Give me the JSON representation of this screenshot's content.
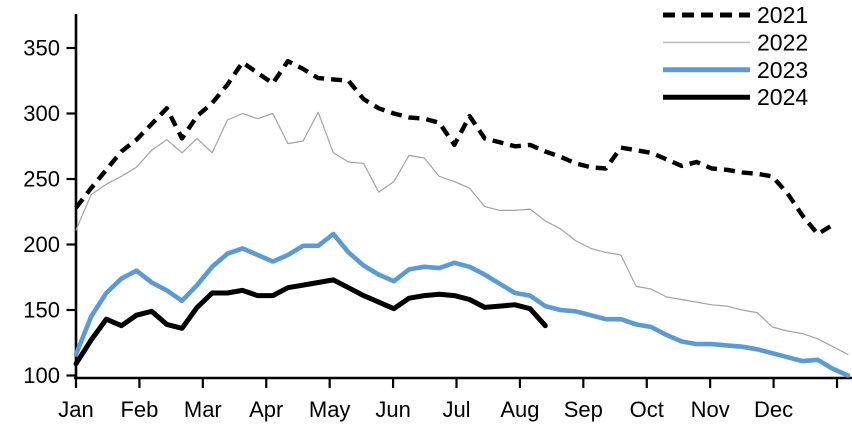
{
  "chart_data": {
    "type": "line",
    "title": "",
    "xlabel": "",
    "ylabel": "",
    "x_unit": "week",
    "categories": [
      "Jan",
      "Feb",
      "Mar",
      "Apr",
      "May",
      "Jun",
      "Jul",
      "Aug",
      "Sep",
      "Oct",
      "Nov",
      "Dec"
    ],
    "ylim": [
      100,
      375
    ],
    "yticks": [
      100,
      150,
      200,
      250,
      300,
      350
    ],
    "grid": false,
    "legend_position": "top-right",
    "axis_color": "#000000",
    "series": [
      {
        "name": "2021",
        "color": "#000000",
        "style": "dashed",
        "width": 4.4,
        "values": [
          228,
          243,
          257,
          271,
          280,
          292,
          304,
          281,
          298,
          308,
          322,
          339,
          331,
          323,
          340,
          334,
          327,
          326,
          325,
          311,
          304,
          300,
          297,
          296,
          293,
          276,
          298,
          281,
          278,
          275,
          276,
          271,
          267,
          262,
          259,
          258,
          274,
          272,
          270,
          265,
          260,
          263,
          258,
          257,
          255,
          254,
          252,
          239,
          222,
          208,
          215
        ]
      },
      {
        "name": "2022",
        "color": "#a3a3a3",
        "style": "solid",
        "width": 1.2,
        "values": [
          211,
          238,
          246,
          252,
          259,
          272,
          280,
          270,
          281,
          270,
          295,
          300,
          296,
          300,
          277,
          279,
          301,
          270,
          263,
          262,
          240,
          248,
          268,
          266,
          252,
          248,
          243,
          229,
          226,
          226,
          227,
          218,
          212,
          203,
          197,
          194,
          192,
          168,
          166,
          160,
          158,
          156,
          154,
          153,
          150,
          148,
          137,
          134,
          132,
          128,
          122,
          116
        ]
      },
      {
        "name": "2023",
        "color": "#5b9bd5",
        "style": "solid",
        "width": 4.6,
        "values": [
          116,
          145,
          163,
          174,
          180,
          171,
          165,
          157,
          169,
          183,
          193,
          197,
          192,
          187,
          192,
          199,
          199,
          208,
          194,
          184,
          177,
          172,
          181,
          183,
          182,
          186,
          183,
          177,
          170,
          163,
          161,
          153,
          150,
          149,
          146,
          143,
          143,
          139,
          137,
          131,
          126,
          124,
          124,
          123,
          122,
          120,
          117,
          114,
          111,
          112,
          105,
          100
        ]
      },
      {
        "name": "2024",
        "color": "#000000",
        "style": "solid",
        "width": 5,
        "values": [
          109,
          127,
          143,
          138,
          146,
          149,
          139,
          136,
          152,
          163,
          163,
          165,
          161,
          161,
          167,
          169,
          171,
          173,
          167,
          161,
          156,
          151,
          159,
          161,
          162,
          161,
          158,
          152,
          153,
          154,
          151,
          138
        ]
      }
    ]
  }
}
